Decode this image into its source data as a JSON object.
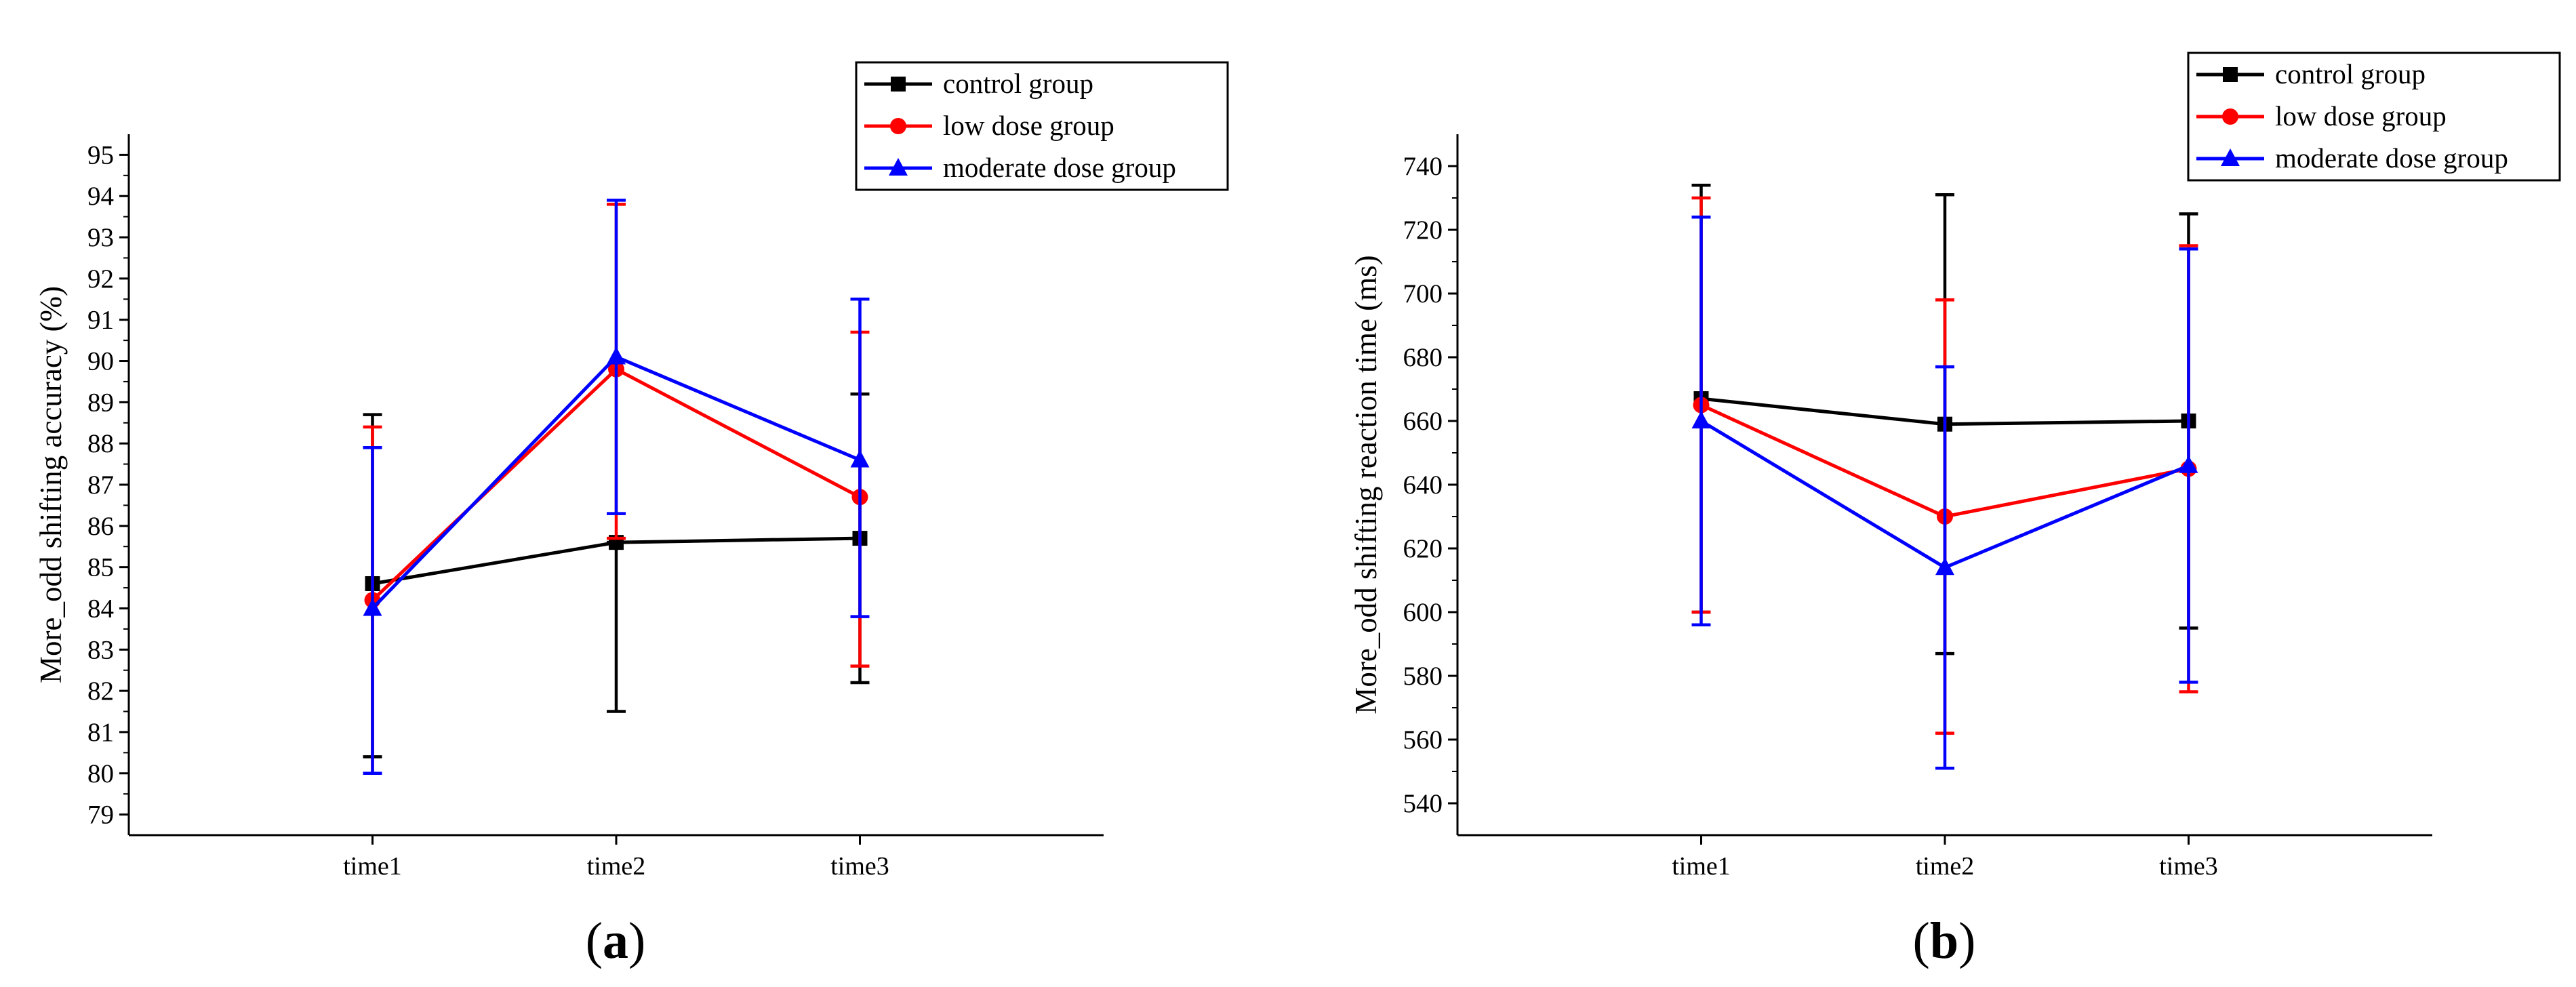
{
  "chart_data": [
    {
      "type": "line",
      "panel_label": "a",
      "title": "",
      "xlabel": "",
      "ylabel": "More_odd shifting accuracy (%)",
      "categories": [
        "time1",
        "time2",
        "time3"
      ],
      "ylim": [
        78.5,
        95.5
      ],
      "yticks": [
        79,
        80,
        81,
        82,
        83,
        84,
        85,
        86,
        87,
        88,
        89,
        90,
        91,
        92,
        93,
        94,
        95
      ],
      "legend_position": "top-right",
      "grid": false,
      "series": [
        {
          "name": "control group",
          "color": "#000000",
          "marker": "square",
          "values": [
            84.6,
            85.6,
            85.7
          ],
          "err_low": [
            80.4,
            81.5,
            82.2
          ],
          "err_high": [
            88.7,
            85.6,
            89.2
          ]
        },
        {
          "name": "low dose group",
          "color": "#ff0000",
          "marker": "circle",
          "values": [
            84.2,
            89.8,
            86.7
          ],
          "err_low": [
            80.0,
            85.7,
            82.6
          ],
          "err_high": [
            88.4,
            93.8,
            90.7
          ]
        },
        {
          "name": "moderate dose group",
          "color": "#0000ff",
          "marker": "triangle",
          "values": [
            84.0,
            90.1,
            87.6
          ],
          "err_low": [
            80.0,
            86.3,
            83.8
          ],
          "err_high": [
            87.9,
            93.9,
            91.5
          ]
        }
      ]
    },
    {
      "type": "line",
      "panel_label": "b",
      "title": "",
      "xlabel": "",
      "ylabel": "More_odd shifting reaction time (ms)",
      "categories": [
        "time1",
        "time2",
        "time3"
      ],
      "ylim": [
        530,
        750
      ],
      "yticks": [
        540,
        560,
        580,
        600,
        620,
        640,
        660,
        680,
        700,
        720,
        740
      ],
      "legend_position": "top-right",
      "grid": false,
      "series": [
        {
          "name": "control group",
          "color": "#000000",
          "marker": "square",
          "values": [
            667,
            659,
            660
          ],
          "err_low": [
            600,
            587,
            595
          ],
          "err_high": [
            734,
            731,
            725
          ]
        },
        {
          "name": "low dose group",
          "color": "#ff0000",
          "marker": "circle",
          "values": [
            665,
            630,
            645
          ],
          "err_low": [
            600,
            562,
            575
          ],
          "err_high": [
            730,
            698,
            715
          ]
        },
        {
          "name": "moderate dose group",
          "color": "#0000ff",
          "marker": "triangle",
          "values": [
            660,
            614,
            646
          ],
          "err_low": [
            596,
            551,
            578
          ],
          "err_high": [
            724,
            677,
            714
          ]
        }
      ]
    }
  ]
}
